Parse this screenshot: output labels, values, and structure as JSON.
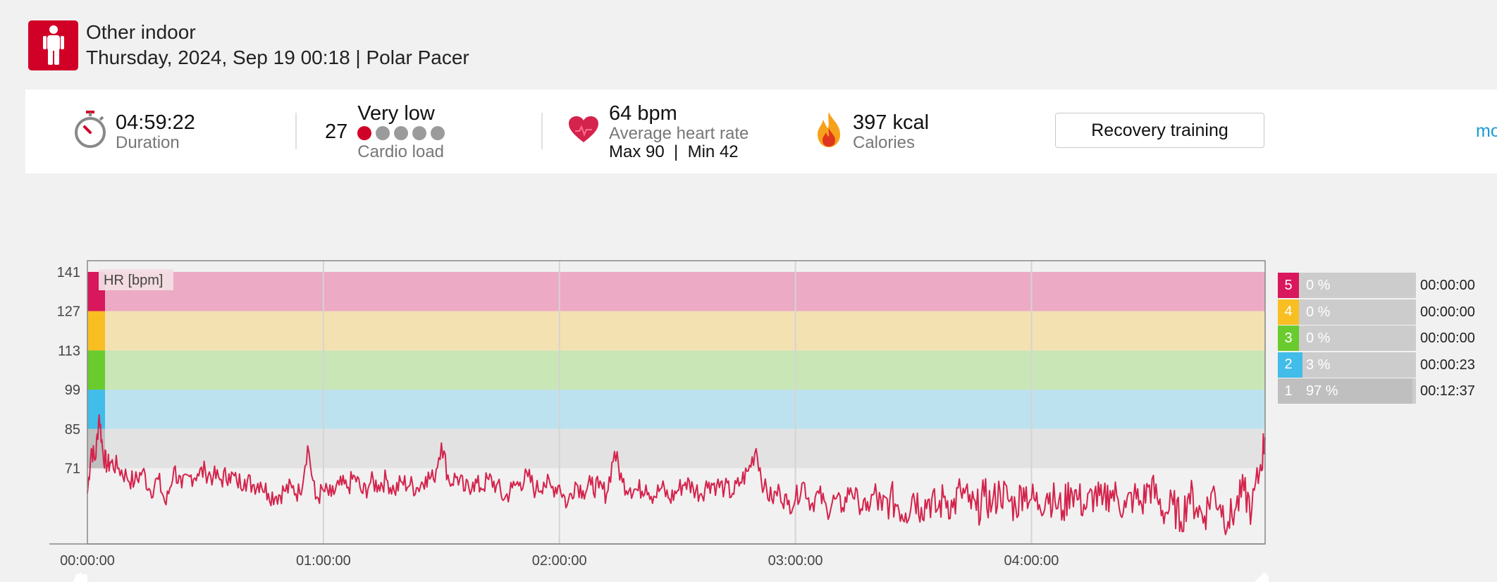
{
  "header": {
    "sport_icon": "person-standing-icon",
    "activity_name": "Other indoor",
    "activity_date": "Thursday, 2024, Sep 19 00:18 | Polar Pacer"
  },
  "summary": {
    "duration": {
      "icon": "stopwatch-icon",
      "value": "04:59:22",
      "label": "Duration"
    },
    "cardio_load": {
      "value": "27",
      "level": "Very low",
      "label": "Cardio load",
      "dots_total": 5,
      "dots_filled": 1
    },
    "heart_rate": {
      "icon": "heart-icon",
      "value": "64 bpm",
      "label": "Average heart rate",
      "max_min": "Max 90  |  Min 42"
    },
    "calories": {
      "icon": "flame-icon",
      "value": "397 kcal",
      "label": "Calories"
    },
    "benefit_button": "Recovery training",
    "more_link": "mo"
  },
  "chart_data": {
    "type": "line",
    "series_label": "HR [bpm]",
    "y_ticks": [
      141,
      127,
      113,
      99,
      85,
      71
    ],
    "x_ticks": [
      "00:00:00",
      "01:00:00",
      "02:00:00",
      "03:00:00",
      "04:00:00"
    ],
    "x_range_minutes": [
      0,
      299.4
    ],
    "y_range": [
      44,
      145
    ],
    "zone_bands": [
      {
        "zone": 5,
        "from": 127,
        "to": 141,
        "color": "#ecaac4",
        "marker": "#d8175c"
      },
      {
        "zone": 4,
        "from": 113,
        "to": 127,
        "color": "#f4e1b1",
        "marker": "#f8be22"
      },
      {
        "zone": 3,
        "from": 99,
        "to": 113,
        "color": "#c9e6b6",
        "marker": "#6acb2e"
      },
      {
        "zone": 2,
        "from": 85,
        "to": 99,
        "color": "#bde2ef",
        "marker": "#42bce9"
      },
      {
        "zone": 1,
        "from": 71,
        "to": 85,
        "color": "#e2e2e2",
        "marker": "#bfbfbf"
      }
    ],
    "series": [
      {
        "color": "#d4234c",
        "x": [
          0,
          1,
          2,
          3,
          4,
          5,
          6,
          8,
          10,
          12,
          14,
          16,
          18,
          20,
          22,
          24,
          26,
          28,
          30,
          32,
          34,
          36,
          38,
          40,
          42,
          44,
          46,
          48,
          50,
          52,
          54,
          56,
          58,
          60,
          62,
          64,
          66,
          68,
          70,
          72,
          74,
          76,
          78,
          80,
          82,
          84,
          86,
          88,
          90,
          92,
          94,
          96,
          98,
          100,
          102,
          104,
          106,
          108,
          110,
          112,
          114,
          116,
          118,
          120,
          122,
          124,
          126,
          128,
          130,
          132,
          134,
          136,
          138,
          140,
          142,
          144,
          146,
          148,
          150,
          152,
          154,
          156,
          158,
          160,
          162,
          164,
          166,
          168,
          170,
          172,
          174,
          176,
          178,
          180,
          182,
          184,
          186,
          188,
          190,
          192,
          194,
          196,
          198,
          200,
          202,
          204,
          206,
          208,
          210,
          212,
          214,
          216,
          218,
          220,
          222,
          224,
          226,
          228,
          230,
          232,
          234,
          236,
          238,
          240,
          242,
          244,
          246,
          248,
          250,
          252,
          254,
          256,
          258,
          260,
          262,
          264,
          266,
          268,
          270,
          272,
          274,
          276,
          278,
          280,
          282,
          284,
          286,
          288,
          290,
          292,
          294,
          296,
          298,
          299.4
        ],
        "values": [
          62,
          78,
          74,
          90,
          76,
          72,
          73,
          71,
          68,
          66,
          70,
          63,
          67,
          58,
          71,
          64,
          68,
          69,
          70,
          68,
          67,
          69,
          66,
          67,
          65,
          66,
          62,
          61,
          63,
          64,
          62,
          79,
          60,
          63,
          61,
          65,
          64,
          68,
          62,
          66,
          65,
          67,
          63,
          66,
          65,
          64,
          68,
          67,
          80,
          66,
          68,
          63,
          66,
          64,
          67,
          65,
          60,
          64,
          66,
          68,
          63,
          66,
          64,
          65,
          58,
          66,
          63,
          65,
          64,
          62,
          77,
          66,
          64,
          63,
          65,
          61,
          64,
          60,
          63,
          66,
          64,
          62,
          66,
          65,
          64,
          62,
          66,
          70,
          78,
          64,
          60,
          63,
          58,
          60,
          66,
          58,
          62,
          56,
          60,
          57,
          64,
          59,
          56,
          62,
          56,
          60,
          58,
          55,
          62,
          57,
          60,
          56,
          61,
          57,
          63,
          59,
          56,
          61,
          58,
          63,
          60,
          57,
          64,
          60,
          58,
          62,
          59,
          56,
          64,
          60,
          57,
          62,
          58,
          63,
          60,
          57,
          61,
          58,
          65,
          60,
          55,
          58,
          52,
          62,
          57,
          54,
          63,
          58,
          52,
          57,
          63,
          56,
          70,
          82
        ]
      }
    ]
  },
  "zones": [
    {
      "num": "5",
      "pct": "0 %",
      "fill": 0,
      "time": "00:00:00",
      "color": "#d8175c"
    },
    {
      "num": "4",
      "pct": "0 %",
      "fill": 0,
      "time": "00:00:00",
      "color": "#f8be22"
    },
    {
      "num": "3",
      "pct": "0 %",
      "fill": 0,
      "time": "00:00:00",
      "color": "#6acb2e"
    },
    {
      "num": "2",
      "pct": "3 %",
      "fill": 0.03,
      "time": "00:00:23",
      "color": "#42bce9"
    },
    {
      "num": "1",
      "pct": "97 %",
      "fill": 0.97,
      "time": "00:12:37",
      "color": "#bfbfbf"
    }
  ]
}
